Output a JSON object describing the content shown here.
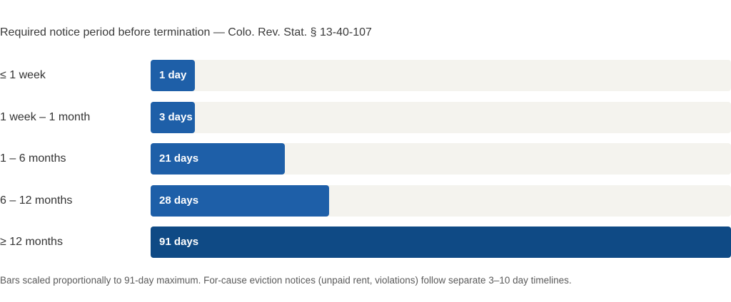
{
  "chart_data": {
    "type": "bar",
    "orientation": "horizontal",
    "title": "Required notice period before termination — Colo. Rev. Stat. § 13-40-107",
    "categories": [
      "≤ 1 week",
      "1 week – 1 month",
      "1 – 6 months",
      "6 – 12 months",
      "≥ 12 months"
    ],
    "values": [
      1,
      3,
      21,
      28,
      91
    ],
    "value_labels": [
      "1 day",
      "3 days",
      "21 days",
      "28 days",
      "91 days"
    ],
    "xlim": [
      0,
      91
    ],
    "unit": "days",
    "grid": false,
    "colors": {
      "bar": "#1e5fa8",
      "bar_max": "#0f4a85",
      "track": "#f4f3ee",
      "label_text": "#ffffff"
    }
  },
  "footnote": "Bars scaled proportionally to 91-day maximum. For-cause eviction notices (unpaid rent, violations) follow separate 3–10 day timelines."
}
